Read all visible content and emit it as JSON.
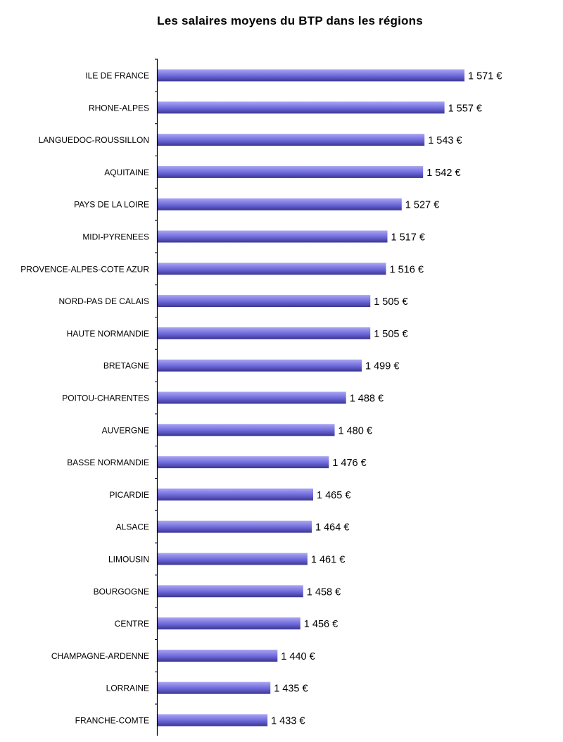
{
  "chart_data": {
    "type": "bar",
    "orientation": "horizontal",
    "title": "Les salaires moyens du BTP dans les régions",
    "unit_suffix": " €",
    "categories": [
      "ILE DE FRANCE",
      "RHONE-ALPES",
      "LANGUEDOC-ROUSSILLON",
      "AQUITAINE",
      "PAYS DE LA LOIRE",
      "MIDI-PYRENEES",
      "PROVENCE-ALPES-COTE AZUR",
      "NORD-PAS DE CALAIS",
      "HAUTE NORMANDIE",
      "BRETAGNE",
      "POITOU-CHARENTES",
      "AUVERGNE",
      "BASSE NORMANDIE",
      "PICARDIE",
      "ALSACE",
      "LIMOUSIN",
      "BOURGOGNE",
      "CENTRE",
      "CHAMPAGNE-ARDENNE",
      "LORRAINE",
      "FRANCHE-COMTE"
    ],
    "values": [
      1571,
      1557,
      1543,
      1542,
      1527,
      1517,
      1516,
      1505,
      1505,
      1499,
      1488,
      1480,
      1476,
      1465,
      1464,
      1461,
      1458,
      1456,
      1440,
      1435,
      1433
    ],
    "value_labels": [
      "1 571 €",
      "1 557 €",
      "1 543 €",
      "1 542 €",
      "1 527 €",
      "1 517 €",
      "1 516 €",
      "1 505 €",
      "1 505 €",
      "1 499 €",
      "1 488 €",
      "1 480 €",
      "1 476 €",
      "1 465 €",
      "1 464 €",
      "1 461 €",
      "1 458 €",
      "1 456 €",
      "1 440 €",
      "1 435 €",
      "1 433 €"
    ],
    "xlim": [
      1356,
      1571
    ],
    "grid": false,
    "legend": "none",
    "bar_colors": {
      "light": "#a9a6f2",
      "mid": "#6d68d9",
      "dark": "#3a3694"
    },
    "axis_color": "#000000"
  }
}
